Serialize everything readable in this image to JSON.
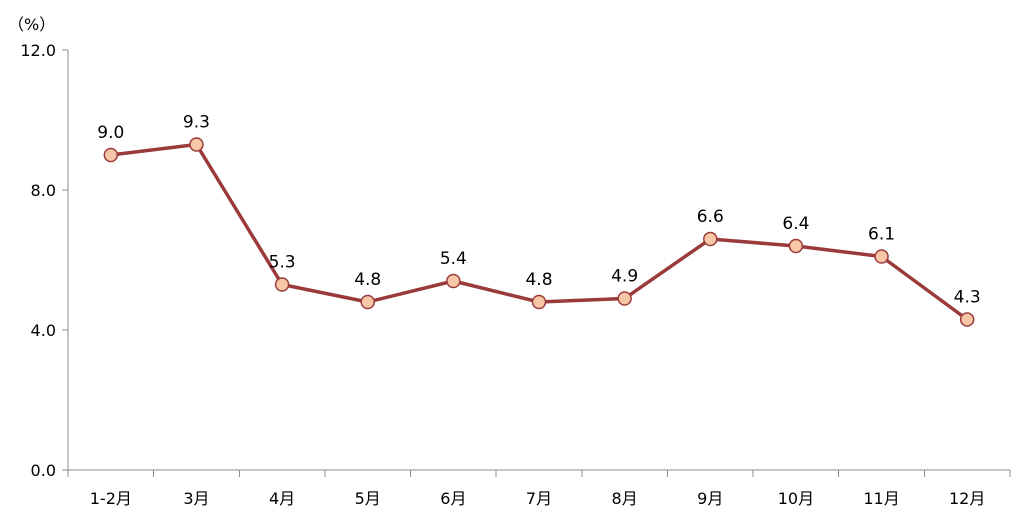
{
  "chart_data": {
    "type": "line",
    "unit_label": "（%）",
    "categories": [
      "1-2月",
      "3月",
      "4月",
      "5月",
      "6月",
      "7月",
      "8月",
      "9月",
      "10月",
      "11月",
      "12月"
    ],
    "series": [
      {
        "values": [
          9.0,
          9.3,
          5.3,
          4.8,
          5.4,
          4.8,
          4.9,
          6.6,
          6.4,
          6.1,
          4.3
        ],
        "color": "#9b3a3a",
        "marker_fill": "#f7c7a8",
        "marker_stroke": "#9b3a3a"
      }
    ],
    "data_labels": [
      "9.0",
      "9.3",
      "5.3",
      "4.8",
      "5.4",
      "4.8",
      "4.9",
      "6.6",
      "6.4",
      "6.1",
      "4.3"
    ],
    "y_ticks": [
      0,
      4,
      8,
      12
    ],
    "y_tick_labels": [
      "0.0",
      "4.0",
      "8.0",
      "12.0"
    ],
    "ylim": [
      0,
      12
    ],
    "grid": false,
    "legend": "none",
    "axis_color": "#8c8c8c"
  }
}
